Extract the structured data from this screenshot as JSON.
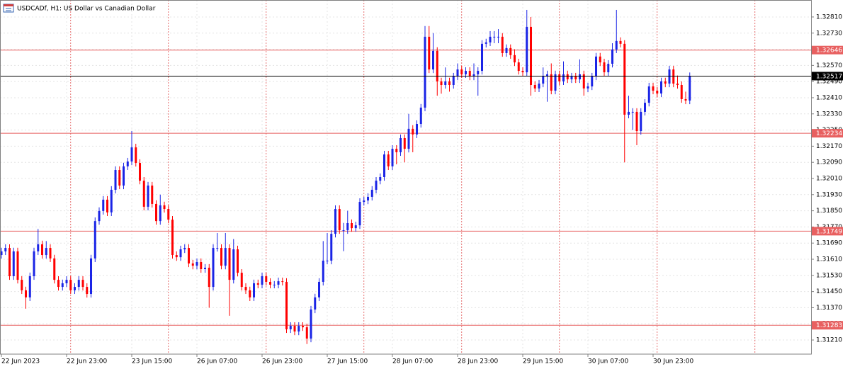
{
  "chart_data": {
    "type": "candlestick",
    "title": "USDCADf, H1:  US Dollar vs Canadian Dollar",
    "up_color": "#1a24e6",
    "down_color": "#ff0000",
    "level_color": "#e86060",
    "current_color": "#000000",
    "grid": true,
    "ylim": [
      1.3114,
      1.32894
    ],
    "xlim": [
      -0.35,
      198.78
    ],
    "yticks": [
      {
        "value": 1.3281,
        "label": "1.32810"
      },
      {
        "value": 1.3273,
        "label": "1.32730"
      },
      {
        "value": 1.3265,
        "label": "1.32650"
      },
      {
        "value": 1.3257,
        "label": "1.32570"
      },
      {
        "value": 1.3249,
        "label": "1.32490"
      },
      {
        "value": 1.3241,
        "label": "1.32410"
      },
      {
        "value": 1.3233,
        "label": "1.32330"
      },
      {
        "value": 1.3225,
        "label": "1.32250"
      },
      {
        "value": 1.3217,
        "label": "1.32170"
      },
      {
        "value": 1.3209,
        "label": "1.32090"
      },
      {
        "value": 1.3201,
        "label": "1.32010"
      },
      {
        "value": 1.3193,
        "label": "1.31930"
      },
      {
        "value": 1.3185,
        "label": "1.31850"
      },
      {
        "value": 1.3177,
        "label": "1.31770"
      },
      {
        "value": 1.3169,
        "label": "1.31690"
      },
      {
        "value": 1.3161,
        "label": "1.31610"
      },
      {
        "value": 1.3153,
        "label": "1.31530"
      },
      {
        "value": 1.3145,
        "label": "1.31450"
      },
      {
        "value": 1.3137,
        "label": "1.31370"
      },
      {
        "value": 1.3129,
        "label": "1.31290"
      },
      {
        "value": 1.3121,
        "label": "1.31210"
      }
    ],
    "xticks": [
      {
        "value": 0,
        "label": "22 Jun 2023"
      },
      {
        "value": 16,
        "label": "22 Jun 23:00"
      },
      {
        "value": 32,
        "label": "23 Jun 15:00"
      },
      {
        "value": 48,
        "label": "26 Jun 07:00"
      },
      {
        "value": 64,
        "label": "26 Jun 23:00"
      },
      {
        "value": 80,
        "label": "27 Jun 15:00"
      },
      {
        "value": 96,
        "label": "28 Jun 07:00"
      },
      {
        "value": 112,
        "label": "28 Jun 23:00"
      },
      {
        "value": 128,
        "label": "29 Jun 15:00"
      },
      {
        "value": 144,
        "label": "30 Jun 07:00"
      },
      {
        "value": 160,
        "label": "30 Jun 23:00"
      }
    ],
    "separators": [
      17,
      41,
      65,
      89,
      113,
      137,
      161,
      185
    ],
    "levels": [
      1.32646,
      1.32234,
      1.31749,
      1.31283
    ],
    "current_price": 1.32517,
    "ohlc": [
      [
        1.31631,
        1.31667,
        1.31613,
        1.31649
      ],
      [
        1.31649,
        1.31684,
        1.31631,
        1.31666
      ],
      [
        1.31666,
        1.31684,
        1.31508,
        1.31526
      ],
      [
        1.31526,
        1.31667,
        1.31508,
        1.31649
      ],
      [
        1.31649,
        1.31667,
        1.3149,
        1.31508
      ],
      [
        1.31508,
        1.31526,
        1.31438,
        1.31456
      ],
      [
        1.31456,
        1.31474,
        1.31365,
        1.31421
      ],
      [
        1.31421,
        1.31544,
        1.31403,
        1.31526
      ],
      [
        1.31526,
        1.31667,
        1.31508,
        1.31649
      ],
      [
        1.31649,
        1.3176,
        1.31631,
        1.31684
      ],
      [
        1.31684,
        1.31702,
        1.31613,
        1.31631
      ],
      [
        1.31631,
        1.317,
        1.31613,
        1.31666
      ],
      [
        1.31666,
        1.31684,
        1.31596,
        1.31614
      ],
      [
        1.31614,
        1.31632,
        1.3149,
        1.31508
      ],
      [
        1.31508,
        1.31526,
        1.31455,
        1.31473
      ],
      [
        1.31473,
        1.31509,
        1.31455,
        1.31491
      ],
      [
        1.31491,
        1.31526,
        1.31473,
        1.31508
      ],
      [
        1.31508,
        1.31526,
        1.31438,
        1.31456
      ],
      [
        1.31456,
        1.31491,
        1.31438,
        1.31473
      ],
      [
        1.31473,
        1.31526,
        1.31455,
        1.31508
      ],
      [
        1.31508,
        1.31526,
        1.31455,
        1.31473
      ],
      [
        1.31473,
        1.31491,
        1.3142,
        1.31438
      ],
      [
        1.31438,
        1.31632,
        1.3142,
        1.31614
      ],
      [
        1.31614,
        1.31817,
        1.31596,
        1.31799
      ],
      [
        1.31799,
        1.31867,
        1.31781,
        1.31849
      ],
      [
        1.31849,
        1.31923,
        1.31831,
        1.31905
      ],
      [
        1.31905,
        1.31923,
        1.31824,
        1.31842
      ],
      [
        1.31842,
        1.31972,
        1.31824,
        1.31954
      ],
      [
        1.31954,
        1.3207,
        1.31936,
        1.32052
      ],
      [
        1.32052,
        1.3207,
        1.31957,
        1.31975
      ],
      [
        1.31975,
        1.32088,
        1.31957,
        1.3207
      ],
      [
        1.3207,
        1.32112,
        1.32052,
        1.32094
      ],
      [
        1.32094,
        1.32245,
        1.32076,
        1.32164
      ],
      [
        1.32164,
        1.32182,
        1.32069,
        1.32087
      ],
      [
        1.32087,
        1.32105,
        1.31981,
        1.31999
      ],
      [
        1.31999,
        1.32017,
        1.31852,
        1.3187
      ],
      [
        1.3187,
        1.31993,
        1.31852,
        1.31975
      ],
      [
        1.31975,
        1.31993,
        1.31866,
        1.31884
      ],
      [
        1.31884,
        1.31902,
        1.31781,
        1.31799
      ],
      [
        1.31799,
        1.3193,
        1.31781,
        1.31877
      ],
      [
        1.31877,
        1.31895,
        1.31841,
        1.31859
      ],
      [
        1.31859,
        1.31877,
        1.31788,
        1.31806
      ],
      [
        1.31806,
        1.31824,
        1.31613,
        1.31631
      ],
      [
        1.31631,
        1.31649,
        1.31602,
        1.3162
      ],
      [
        1.3162,
        1.31677,
        1.31602,
        1.31659
      ],
      [
        1.31659,
        1.31684,
        1.31641,
        1.31666
      ],
      [
        1.31666,
        1.31684,
        1.31571,
        1.31589
      ],
      [
        1.31589,
        1.31607,
        1.3156,
        1.31578
      ],
      [
        1.31578,
        1.31614,
        1.3156,
        1.31596
      ],
      [
        1.31596,
        1.31614,
        1.31543,
        1.31561
      ],
      [
        1.31561,
        1.31586,
        1.31543,
        1.31568
      ],
      [
        1.31568,
        1.31586,
        1.3137,
        1.31473
      ],
      [
        1.31473,
        1.31684,
        1.31455,
        1.31666
      ],
      [
        1.31666,
        1.3174,
        1.31648,
        1.31666
      ],
      [
        1.31666,
        1.31684,
        1.3156,
        1.31578
      ],
      [
        1.31578,
        1.3174,
        1.3156,
        1.31666
      ],
      [
        1.31666,
        1.31684,
        1.3133,
        1.31508
      ],
      [
        1.31508,
        1.3171,
        1.3149,
        1.31659
      ],
      [
        1.31659,
        1.31677,
        1.31525,
        1.31543
      ],
      [
        1.31543,
        1.31561,
        1.31455,
        1.31473
      ],
      [
        1.31473,
        1.31491,
        1.31438,
        1.31456
      ],
      [
        1.31456,
        1.31474,
        1.31403,
        1.31421
      ],
      [
        1.31421,
        1.31509,
        1.31403,
        1.31491
      ],
      [
        1.31491,
        1.31509,
        1.31466,
        1.31484
      ],
      [
        1.31484,
        1.31544,
        1.31466,
        1.31526
      ],
      [
        1.31526,
        1.31544,
        1.3148,
        1.31498
      ],
      [
        1.31498,
        1.31516,
        1.31466,
        1.31484
      ],
      [
        1.31484,
        1.31502,
        1.31466,
        1.31484
      ],
      [
        1.31484,
        1.31519,
        1.31466,
        1.31501
      ],
      [
        1.31501,
        1.31519,
        1.3148,
        1.31498
      ],
      [
        1.31498,
        1.31516,
        1.31245,
        1.31263
      ],
      [
        1.31263,
        1.31298,
        1.31245,
        1.3128
      ],
      [
        1.3128,
        1.31298,
        1.31234,
        1.31252
      ],
      [
        1.31252,
        1.31298,
        1.31234,
        1.3128
      ],
      [
        1.3128,
        1.31298,
        1.31255,
        1.31273
      ],
      [
        1.31273,
        1.31291,
        1.3119,
        1.31217
      ],
      [
        1.31217,
        1.31379,
        1.31199,
        1.31361
      ],
      [
        1.31361,
        1.31439,
        1.31343,
        1.31421
      ],
      [
        1.31421,
        1.31516,
        1.31403,
        1.31498
      ],
      [
        1.31498,
        1.317,
        1.3148,
        1.31603
      ],
      [
        1.31603,
        1.3174,
        1.31585,
        1.31603
      ],
      [
        1.31603,
        1.31754,
        1.31585,
        1.31736
      ],
      [
        1.31736,
        1.31877,
        1.31718,
        1.31859
      ],
      [
        1.31859,
        1.31877,
        1.31736,
        1.31754
      ],
      [
        1.31754,
        1.3179,
        1.3165,
        1.31754
      ],
      [
        1.31754,
        1.3185,
        1.31736,
        1.31789
      ],
      [
        1.31789,
        1.31807,
        1.31746,
        1.31764
      ],
      [
        1.31764,
        1.31796,
        1.31746,
        1.31778
      ],
      [
        1.31778,
        1.31912,
        1.3176,
        1.31894
      ],
      [
        1.31894,
        1.31919,
        1.31876,
        1.31901
      ],
      [
        1.31901,
        1.31937,
        1.31883,
        1.31919
      ],
      [
        1.31919,
        1.31972,
        1.31901,
        1.31954
      ],
      [
        1.31954,
        1.32017,
        1.31936,
        1.31999
      ],
      [
        1.31999,
        1.32035,
        1.31981,
        1.32017
      ],
      [
        1.32017,
        1.32147,
        1.31999,
        1.32129
      ],
      [
        1.32129,
        1.32147,
        1.32052,
        1.3207
      ],
      [
        1.3207,
        1.32175,
        1.32052,
        1.32157
      ],
      [
        1.32157,
        1.32175,
        1.3208,
        1.3214
      ],
      [
        1.3214,
        1.32228,
        1.32122,
        1.3221
      ],
      [
        1.3221,
        1.32228,
        1.3209,
        1.32157
      ],
      [
        1.32157,
        1.3233,
        1.32139,
        1.32256
      ],
      [
        1.32256,
        1.32274,
        1.3214,
        1.32228
      ],
      [
        1.32228,
        1.32298,
        1.3221,
        1.3228
      ],
      [
        1.3228,
        1.32379,
        1.32262,
        1.32361
      ],
      [
        1.32361,
        1.32765,
        1.32343,
        1.32712
      ],
      [
        1.32712,
        1.32765,
        1.32532,
        1.3255
      ],
      [
        1.3255,
        1.3273,
        1.32532,
        1.32642
      ],
      [
        1.32642,
        1.3266,
        1.3242,
        1.32491
      ],
      [
        1.32491,
        1.32509,
        1.3243,
        1.32473
      ],
      [
        1.32473,
        1.3256,
        1.32455,
        1.32491
      ],
      [
        1.32491,
        1.32509,
        1.3244,
        1.32473
      ],
      [
        1.32473,
        1.32533,
        1.32455,
        1.32515
      ],
      [
        1.32515,
        1.3258,
        1.32497,
        1.3255
      ],
      [
        1.3255,
        1.32568,
        1.32508,
        1.32526
      ],
      [
        1.32526,
        1.32561,
        1.32508,
        1.32543
      ],
      [
        1.32543,
        1.32561,
        1.32497,
        1.32515
      ],
      [
        1.32515,
        1.3258,
        1.32497,
        1.32526
      ],
      [
        1.32526,
        1.32561,
        1.3242,
        1.32543
      ],
      [
        1.32543,
        1.32695,
        1.32525,
        1.32677
      ],
      [
        1.32677,
        1.32702,
        1.32659,
        1.32684
      ],
      [
        1.32684,
        1.3274,
        1.32666,
        1.32712
      ],
      [
        1.32712,
        1.3274,
        1.3268,
        1.32712
      ],
      [
        1.32712,
        1.3275,
        1.3268,
        1.32712
      ],
      [
        1.32712,
        1.3273,
        1.32613,
        1.32631
      ],
      [
        1.32631,
        1.32674,
        1.32613,
        1.32656
      ],
      [
        1.32656,
        1.32674,
        1.32603,
        1.32621
      ],
      [
        1.32621,
        1.3265,
        1.32567,
        1.32585
      ],
      [
        1.32585,
        1.32603,
        1.32525,
        1.32543
      ],
      [
        1.32543,
        1.32561,
        1.32518,
        1.32536
      ],
      [
        1.32536,
        1.32845,
        1.32518,
        1.32761
      ],
      [
        1.32761,
        1.3281,
        1.3242,
        1.32473
      ],
      [
        1.32473,
        1.32491,
        1.32438,
        1.32456
      ],
      [
        1.32456,
        1.32498,
        1.32438,
        1.3248
      ],
      [
        1.3248,
        1.3256,
        1.32462,
        1.32515
      ],
      [
        1.32515,
        1.32544,
        1.3239,
        1.32526
      ],
      [
        1.32526,
        1.3258,
        1.32427,
        1.32445
      ],
      [
        1.32445,
        1.32544,
        1.32427,
        1.32526
      ],
      [
        1.32526,
        1.32544,
        1.32473,
        1.32491
      ],
      [
        1.32491,
        1.3259,
        1.32473,
        1.32526
      ],
      [
        1.32526,
        1.32544,
        1.32483,
        1.32501
      ],
      [
        1.32501,
        1.32533,
        1.32483,
        1.32515
      ],
      [
        1.32515,
        1.32533,
        1.32483,
        1.32501
      ],
      [
        1.32501,
        1.326,
        1.32483,
        1.32526
      ],
      [
        1.32526,
        1.32544,
        1.3242,
        1.32456
      ],
      [
        1.32456,
        1.32484,
        1.32438,
        1.32466
      ],
      [
        1.32466,
        1.32533,
        1.32448,
        1.32515
      ],
      [
        1.32515,
        1.32632,
        1.32497,
        1.32614
      ],
      [
        1.32614,
        1.32632,
        1.32567,
        1.32585
      ],
      [
        1.32585,
        1.32603,
        1.32518,
        1.32536
      ],
      [
        1.32536,
        1.32596,
        1.32518,
        1.32578
      ],
      [
        1.32578,
        1.3268,
        1.3256,
        1.32649
      ],
      [
        1.32649,
        1.32845,
        1.32631,
        1.32691
      ],
      [
        1.32691,
        1.32709,
        1.32659,
        1.32677
      ],
      [
        1.32677,
        1.32695,
        1.3209,
        1.32326
      ],
      [
        1.32326,
        1.3242,
        1.32308,
        1.3234
      ],
      [
        1.3234,
        1.32358,
        1.3225,
        1.3234
      ],
      [
        1.3234,
        1.32358,
        1.32175,
        1.32245
      ],
      [
        1.32245,
        1.32358,
        1.32227,
        1.3234
      ],
      [
        1.3234,
        1.32403,
        1.32322,
        1.32385
      ],
      [
        1.32385,
        1.32484,
        1.32367,
        1.32466
      ],
      [
        1.32466,
        1.32484,
        1.32427,
        1.32445
      ],
      [
        1.32445,
        1.32463,
        1.32413,
        1.32431
      ],
      [
        1.32431,
        1.32509,
        1.32413,
        1.32491
      ],
      [
        1.32491,
        1.32509,
        1.32462,
        1.3248
      ],
      [
        1.3248,
        1.32568,
        1.32462,
        1.3255
      ],
      [
        1.3255,
        1.32568,
        1.32462,
        1.3248
      ],
      [
        1.3248,
        1.3252,
        1.32455,
        1.32473
      ],
      [
        1.32473,
        1.32491,
        1.32385,
        1.32403
      ],
      [
        1.32403,
        1.3244,
        1.32378,
        1.32396
      ],
      [
        1.32396,
        1.32535,
        1.32378,
        1.32517
      ]
    ]
  }
}
